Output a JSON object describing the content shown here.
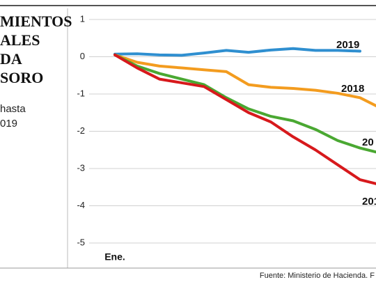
{
  "chart_data": {
    "type": "line",
    "title_lines": [
      "MIENTOS",
      "ALES",
      "DA",
      "SORO"
    ],
    "subtitle_lines": [
      "hasta",
      "019"
    ],
    "source": "Fuente: Ministerio de Hacienda. F",
    "categories": [
      "Ene.",
      null,
      null,
      null,
      null,
      null,
      null,
      null,
      null,
      null,
      null,
      null,
      null
    ],
    "ylim": [
      -5,
      1
    ],
    "yticks": [
      1,
      0,
      -1,
      -2,
      -3,
      -4,
      -5
    ],
    "grid": true,
    "series": [
      {
        "name": "2019",
        "color": "#2f8fd0",
        "values": [
          0.07,
          0.08,
          0.05,
          0.04,
          0.1,
          0.17,
          0.12,
          0.18,
          0.22,
          0.17,
          0.17,
          0.15,
          null
        ]
      },
      {
        "name": "2018",
        "color": "#f39c1f",
        "values": [
          0.05,
          -0.15,
          -0.25,
          -0.3,
          -0.35,
          -0.4,
          -0.75,
          -0.82,
          -0.85,
          -0.9,
          -0.98,
          -1.1,
          -1.4
        ]
      },
      {
        "name": "20",
        "color": "#4aa832",
        "values": [
          0.05,
          -0.25,
          -0.45,
          -0.6,
          -0.75,
          -1.1,
          -1.4,
          -1.6,
          -1.72,
          -1.95,
          -2.25,
          -2.45,
          -2.6
        ]
      },
      {
        "name": "201",
        "color": "#d7191c",
        "values": [
          0.05,
          -0.3,
          -0.6,
          -0.7,
          -0.8,
          -1.15,
          -1.5,
          -1.75,
          -2.15,
          -2.5,
          -2.9,
          -3.3,
          -3.45
        ]
      }
    ]
  }
}
